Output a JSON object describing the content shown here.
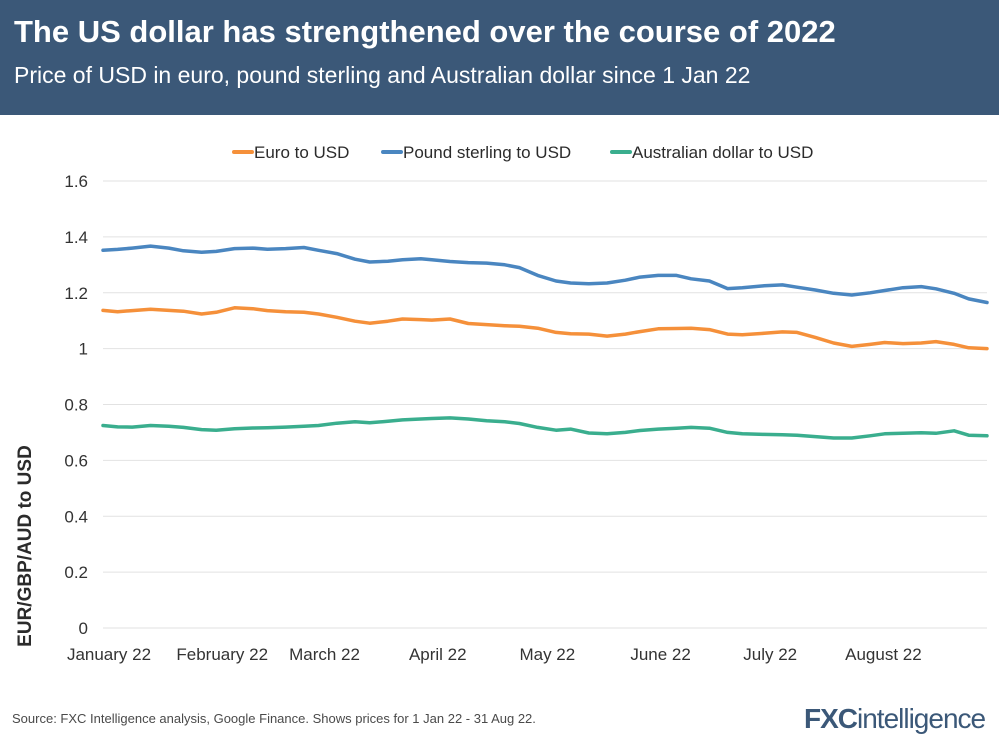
{
  "header": {
    "title": "The US dollar has strengthened over the course of 2022",
    "subtitle": "Price of USD in euro, pound sterling and Australian dollar since 1 Jan 22"
  },
  "footer": {
    "source": "Source: FXC Intelligence analysis, Google Finance. Shows prices for 1 Jan 22 - 31 Aug 22."
  },
  "logo": {
    "part1": "FXC",
    "part2": "intelligence"
  },
  "chart_data": {
    "type": "line",
    "title": "The US dollar has strengthened over the course of 2022",
    "subtitle": "Price of USD in euro, pound sterling and Australian dollar since 1 Jan 22",
    "xlabel": "",
    "ylabel": "EUR/GBP/AUD to USD",
    "ylim": [
      0,
      1.6
    ],
    "y_ticks": [
      0,
      0.2,
      0.4,
      0.6,
      0.8,
      1,
      1.2,
      1.4,
      1.6
    ],
    "y_tick_labels": [
      "0",
      "0.2",
      "0.4",
      "0.6",
      "0.8",
      "1",
      "1.2",
      "1.4",
      "1.6"
    ],
    "x_tick_labels": [
      "January 22",
      "February 22",
      "March 22",
      "April 22",
      "May 22",
      "June 22",
      "July 22",
      "August 22"
    ],
    "x_tick_days": [
      0,
      31,
      59,
      90,
      120,
      151,
      181,
      212
    ],
    "xlim": [
      0,
      242
    ],
    "grid": true,
    "legend_position": "top",
    "series": [
      {
        "name": "Euro to USD",
        "color": "#f5903a",
        "x": [
          0,
          4,
          8,
          13,
          18,
          22,
          27,
          31,
          36,
          41,
          45,
          50,
          55,
          59,
          64,
          69,
          73,
          78,
          82,
          87,
          90,
          95,
          100,
          105,
          110,
          114,
          119,
          124,
          128,
          133,
          138,
          143,
          147,
          152,
          157,
          161,
          166,
          171,
          175,
          181,
          186,
          190,
          195,
          200,
          205,
          210,
          214,
          219,
          224,
          228,
          233,
          237,
          242
        ],
        "values": [
          1.137,
          1.132,
          1.136,
          1.141,
          1.137,
          1.134,
          1.124,
          1.13,
          1.146,
          1.143,
          1.136,
          1.132,
          1.13,
          1.124,
          1.112,
          1.098,
          1.091,
          1.098,
          1.106,
          1.104,
          1.102,
          1.106,
          1.09,
          1.086,
          1.082,
          1.08,
          1.073,
          1.058,
          1.053,
          1.052,
          1.045,
          1.052,
          1.061,
          1.071,
          1.072,
          1.073,
          1.068,
          1.052,
          1.05,
          1.055,
          1.06,
          1.058,
          1.04,
          1.02,
          1.008,
          1.015,
          1.022,
          1.018,
          1.02,
          1.025,
          1.015,
          1.003,
          1.0
        ]
      },
      {
        "name": "Pound sterling to USD",
        "color": "#4a86c0",
        "x": [
          0,
          4,
          8,
          13,
          18,
          22,
          27,
          31,
          36,
          41,
          45,
          50,
          55,
          59,
          64,
          69,
          73,
          78,
          82,
          87,
          90,
          95,
          100,
          105,
          110,
          114,
          119,
          124,
          128,
          133,
          138,
          143,
          147,
          152,
          157,
          161,
          166,
          171,
          175,
          181,
          186,
          190,
          195,
          200,
          205,
          210,
          214,
          219,
          224,
          228,
          233,
          237,
          242
        ],
        "values": [
          1.352,
          1.355,
          1.36,
          1.367,
          1.36,
          1.35,
          1.345,
          1.348,
          1.358,
          1.36,
          1.356,
          1.358,
          1.362,
          1.352,
          1.34,
          1.32,
          1.31,
          1.313,
          1.318,
          1.322,
          1.318,
          1.312,
          1.308,
          1.306,
          1.3,
          1.29,
          1.262,
          1.242,
          1.235,
          1.232,
          1.235,
          1.245,
          1.256,
          1.262,
          1.262,
          1.25,
          1.242,
          1.215,
          1.218,
          1.225,
          1.228,
          1.22,
          1.21,
          1.198,
          1.192,
          1.2,
          1.208,
          1.218,
          1.222,
          1.214,
          1.198,
          1.178,
          1.165
        ]
      },
      {
        "name": "Australian dollar to USD",
        "color": "#3aae8e",
        "x": [
          0,
          4,
          8,
          13,
          18,
          22,
          27,
          31,
          36,
          41,
          45,
          50,
          55,
          59,
          64,
          69,
          73,
          78,
          82,
          87,
          90,
          95,
          100,
          105,
          110,
          114,
          119,
          124,
          128,
          133,
          138,
          143,
          147,
          152,
          157,
          161,
          166,
          171,
          175,
          181,
          186,
          190,
          195,
          200,
          205,
          210,
          214,
          219,
          224,
          228,
          233,
          237,
          242
        ],
        "values": [
          0.725,
          0.72,
          0.719,
          0.725,
          0.722,
          0.718,
          0.71,
          0.708,
          0.713,
          0.716,
          0.717,
          0.719,
          0.722,
          0.725,
          0.733,
          0.738,
          0.735,
          0.74,
          0.745,
          0.748,
          0.75,
          0.752,
          0.748,
          0.742,
          0.738,
          0.732,
          0.718,
          0.708,
          0.712,
          0.698,
          0.695,
          0.7,
          0.707,
          0.712,
          0.715,
          0.718,
          0.715,
          0.7,
          0.695,
          0.693,
          0.692,
          0.69,
          0.685,
          0.68,
          0.68,
          0.688,
          0.695,
          0.697,
          0.699,
          0.697,
          0.706,
          0.69,
          0.688
        ]
      }
    ]
  }
}
